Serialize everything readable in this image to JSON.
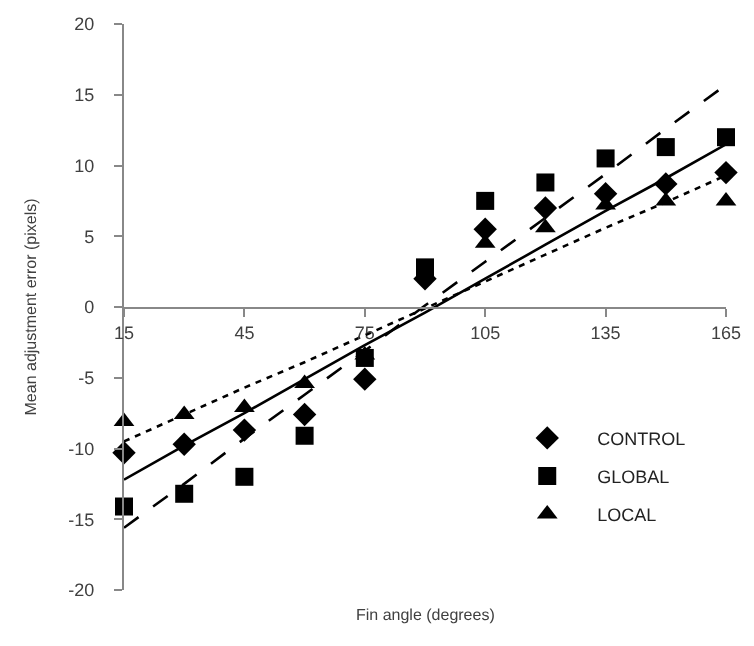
{
  "chart_data": {
    "type": "scatter",
    "xlabel": "Fin angle (degrees)",
    "ylabel": "Mean adjustment error (pixels)",
    "x": [
      15,
      30,
      45,
      60,
      75,
      90,
      105,
      120,
      135,
      150,
      165
    ],
    "series": [
      {
        "name": "CONTROL",
        "color": "#000000",
        "marker": "diamond",
        "values": [
          -10.3,
          -9.7,
          -8.7,
          -7.6,
          -5.1,
          2,
          5.5,
          7,
          8,
          8.7,
          9.5
        ]
      },
      {
        "name": "GLOBAL",
        "color": "#000000",
        "marker": "square",
        "values": [
          -14.1,
          -13.2,
          -12,
          -9.1,
          -3.6,
          2.8,
          7.5,
          8.8,
          10.5,
          11.3,
          12
        ]
      },
      {
        "name": "LOCAL",
        "color": "#000000",
        "marker": "triangle",
        "values": [
          -8.1,
          -7.6,
          -7.1,
          -5.4,
          -3.4,
          null,
          4.5,
          5.6,
          7.2,
          7.5,
          7.5
        ]
      },
      {
        "type": "line",
        "color": "#000000",
        "line_style": "solid",
        "values": [
          -12.2,
          -9.8,
          -7.5,
          -5.1,
          -2.7,
          -0.4,
          2.0,
          4.4,
          6.8,
          9.1,
          11.5
        ]
      },
      {
        "type": "line",
        "color": "#000000",
        "line_style": "dashed",
        "values": [
          -15.6,
          -12.5,
          -9.3,
          -6.2,
          -3.1,
          0.1,
          3.2,
          6.3,
          9.4,
          12.6,
          15.7
        ]
      },
      {
        "type": "line",
        "color": "#000000",
        "line_style": "dotted",
        "values": [
          -9.5,
          -7.6,
          -5.7,
          -3.9,
          -2.0,
          -0.1,
          1.8,
          3.7,
          5.6,
          7.4,
          9.3
        ]
      }
    ],
    "xlim": [
      15,
      165
    ],
    "xticks": [
      15,
      45,
      75,
      105,
      135,
      165
    ],
    "ylim": [
      -20,
      20
    ],
    "yticks": [
      -20,
      -15,
      -10,
      -5,
      0,
      5,
      10,
      15,
      20
    ],
    "grid": false,
    "legend": "bottom right"
  }
}
